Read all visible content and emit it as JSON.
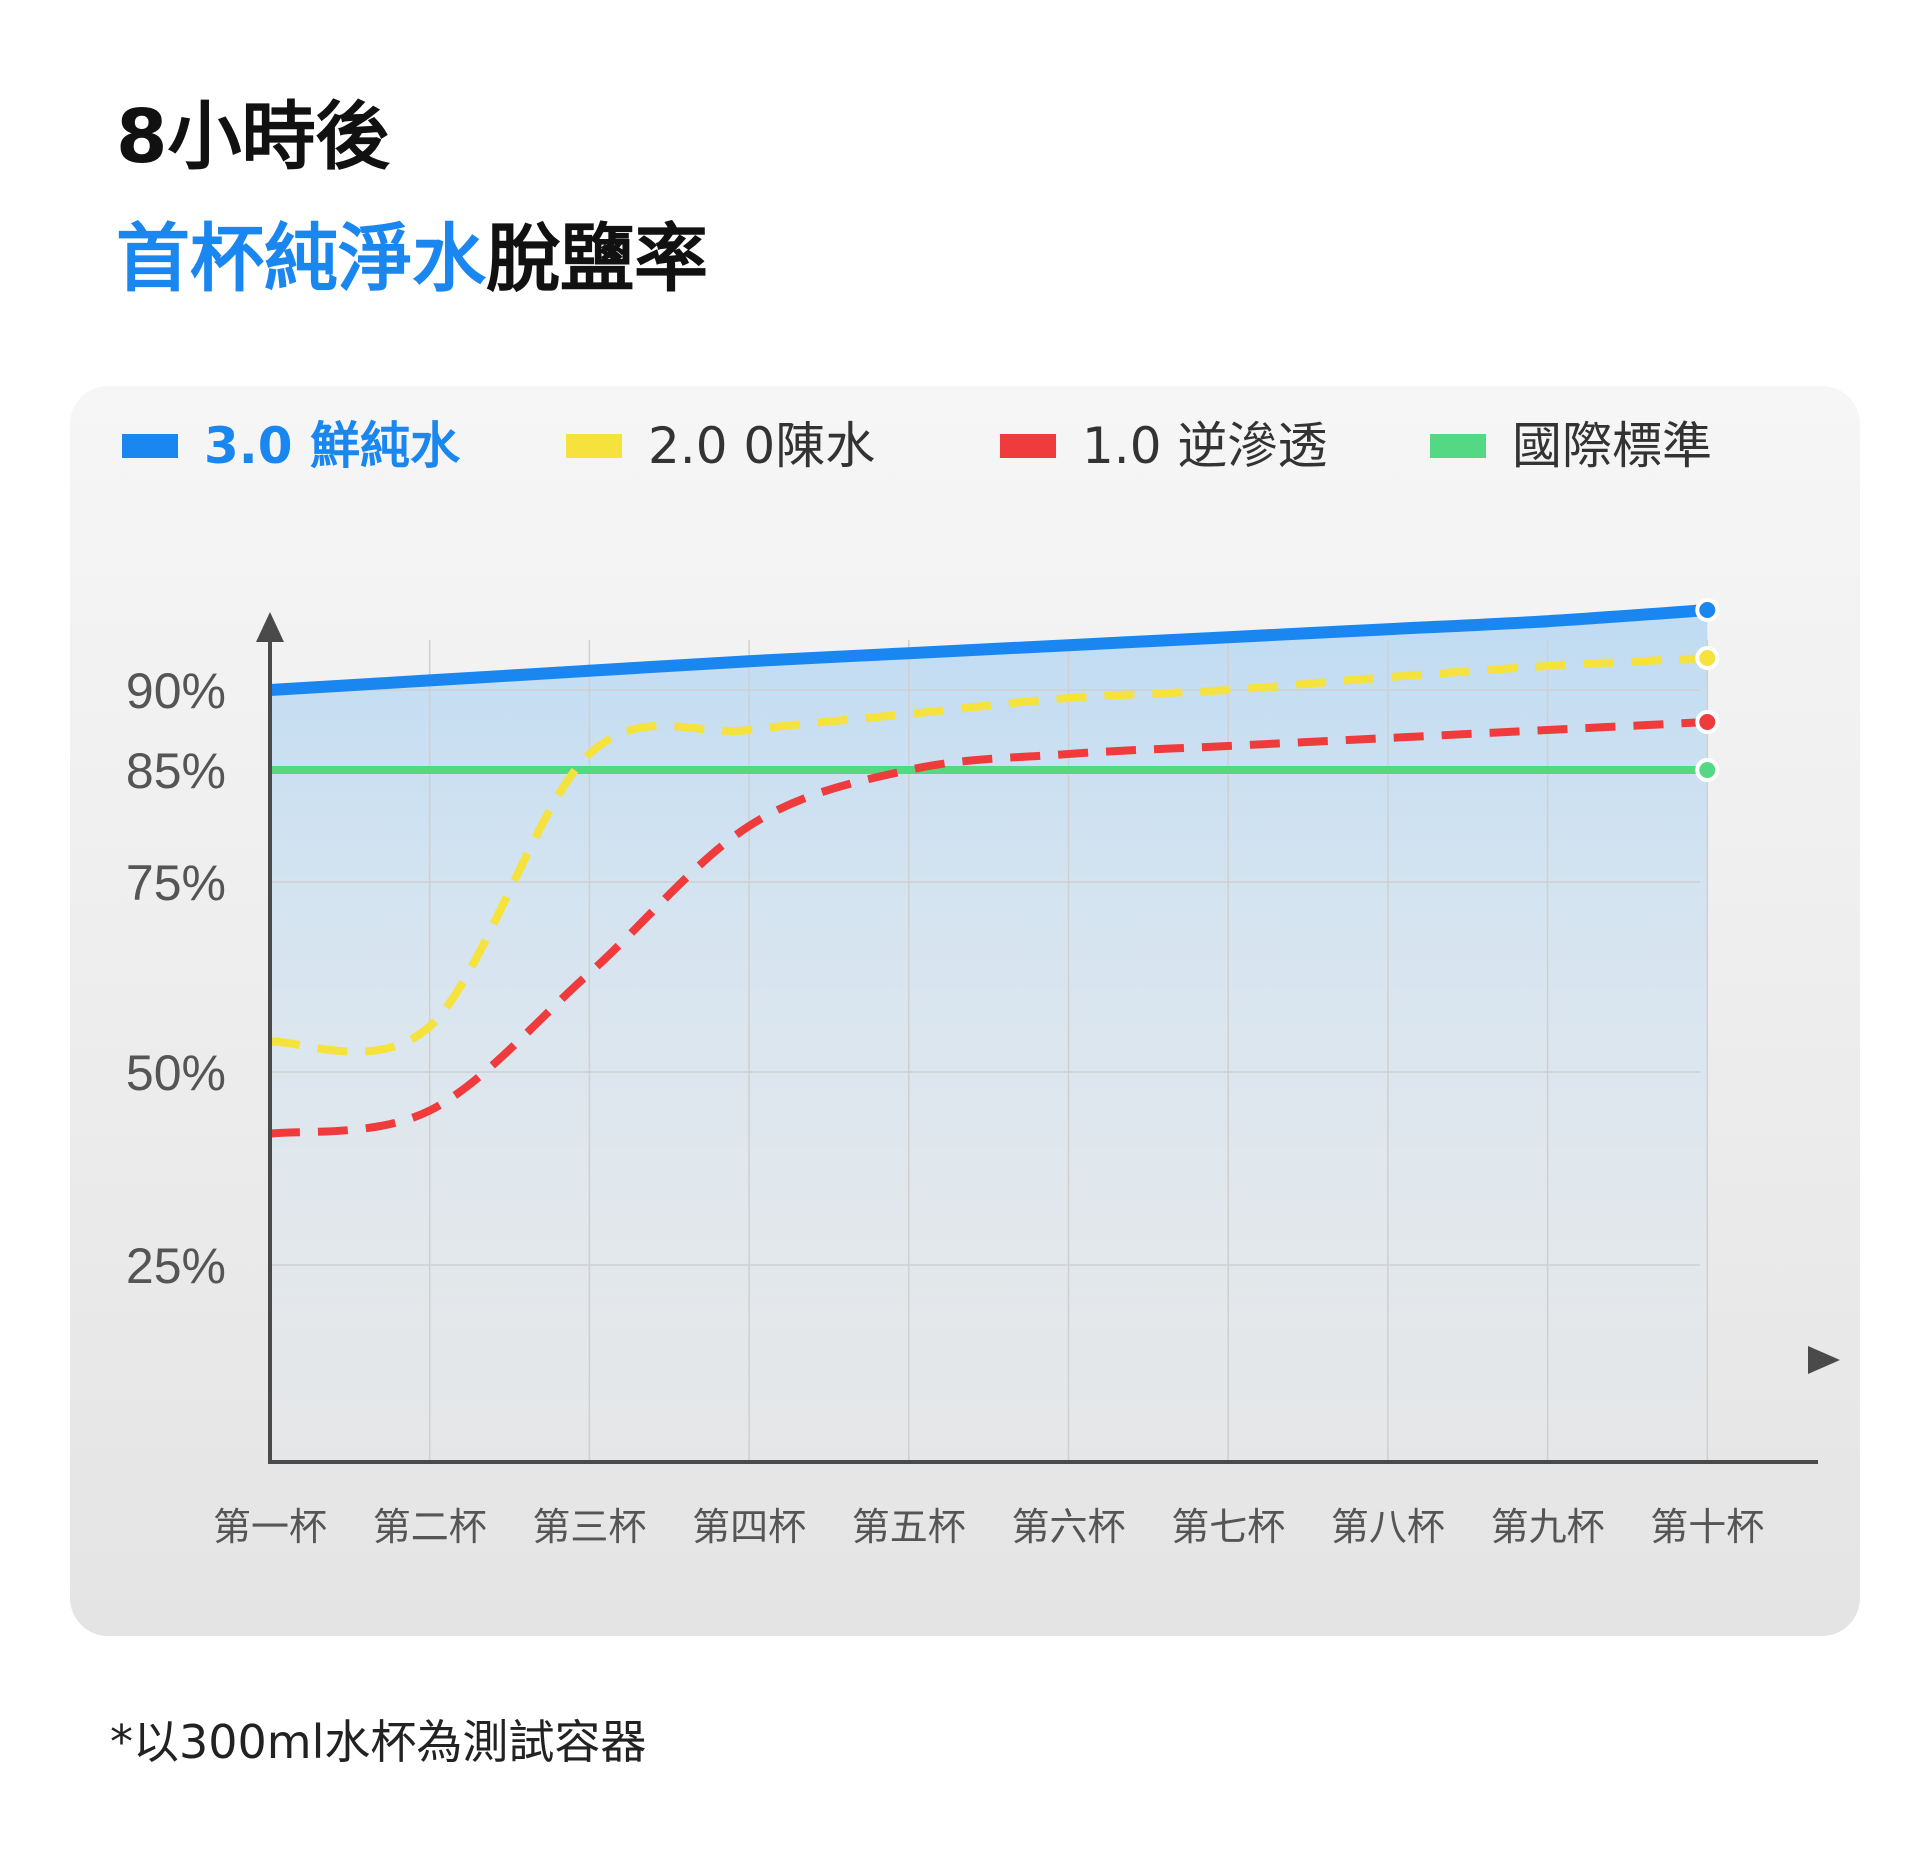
{
  "title": {
    "line1": "8小時後",
    "highlight": "首杯純淨水",
    "rest": "脫鹽率"
  },
  "footnote": "*以300ml水杯為測試容器",
  "colors": {
    "accent": "#1a86f0",
    "card": "#ececec"
  },
  "chart_data": {
    "type": "line",
    "categories": [
      "第一杯",
      "第二杯",
      "第三杯",
      "第四杯",
      "第五杯",
      "第六杯",
      "第七杯",
      "第八杯",
      "第九杯",
      "第十杯"
    ],
    "y_ticks": [
      "90%",
      "85%",
      "75%",
      "50%",
      "25%"
    ],
    "y_tick_values": [
      90,
      85,
      75,
      50,
      25
    ],
    "series": [
      {
        "name": "3.0 鮮純水",
        "color": "#1a86f0",
        "style": "solid",
        "values": [
          90,
          90.6,
          91.2,
          91.8,
          92.3,
          92.8,
          93.3,
          93.8,
          94.3,
          95
        ]
      },
      {
        "name": "2.0 0陳水",
        "color": "#f5e23c",
        "style": "dashed",
        "values": [
          54,
          56,
          86,
          87.5,
          88.5,
          89.5,
          90,
          90.8,
          91.5,
          92
        ]
      },
      {
        "name": "1.0 逆滲透",
        "color": "#ef3b3b",
        "style": "dashed",
        "values": [
          42,
          45,
          63,
          80,
          85,
          86,
          86.5,
          87,
          87.5,
          88
        ]
      },
      {
        "name": "國際標準",
        "color": "#55d883",
        "style": "solid",
        "values": [
          85,
          85,
          85,
          85,
          85,
          85,
          85,
          85,
          85,
          85
        ]
      }
    ],
    "xlabel": "",
    "ylabel": "",
    "grid": true,
    "legend_position": "top"
  }
}
